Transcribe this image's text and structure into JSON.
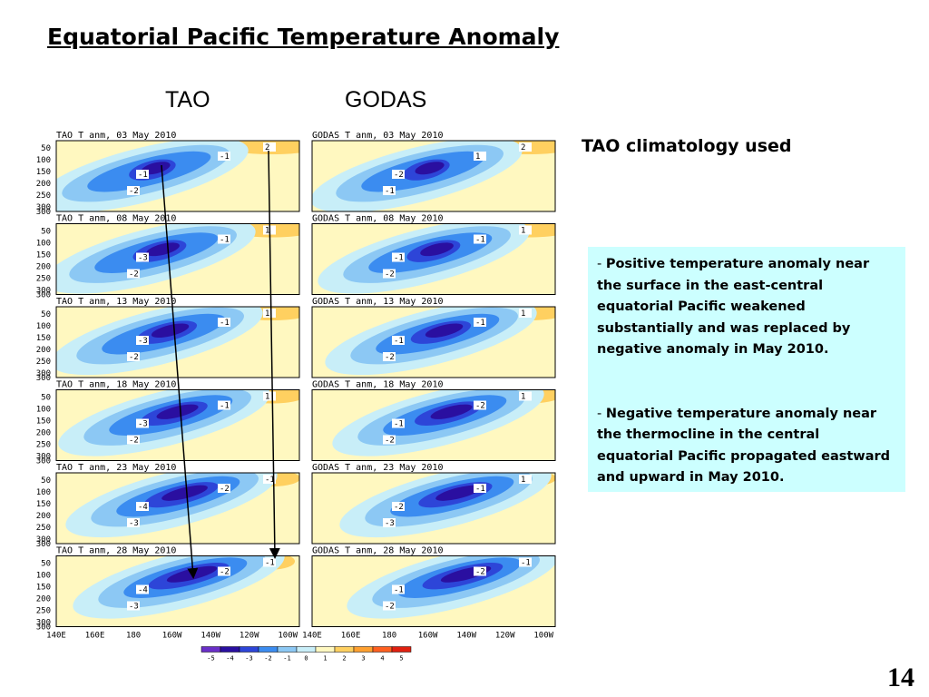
{
  "slide": {
    "title": "Equatorial Pacific Temperature Anomaly",
    "col_tao": "TAO",
    "col_godas": "GODAS",
    "clim_note": "TAO climatology used",
    "page_number": "14"
  },
  "notes": [
    {
      "dash": "- ",
      "text": "Positive temperature anomaly near the surface in the east-central equatorial Pacific  weakened substantially and was replaced by negative anomaly in May 2010."
    },
    {
      "dash": "- ",
      "text": "Negative temperature anomaly near the thermocline in the central equatorial Pacific propagated eastward  and upward in May 2010."
    }
  ],
  "panels": {
    "dates": [
      "03 May 2010",
      "08 May 2010",
      "13 May 2010",
      "18 May 2010",
      "23 May 2010",
      "28 May 2010"
    ],
    "tao_prefix": "TAO T anm, ",
    "godas_prefix": "GODAS T anm, ",
    "depth_ticks": [
      "50",
      "100",
      "150",
      "200",
      "250",
      "300"
    ],
    "lon_ticks": [
      "140E",
      "160E",
      "180",
      "160W",
      "140W",
      "120W",
      "100W"
    ],
    "contour_labels": {
      "tao": [
        [
          "-1",
          "-2",
          "-1",
          "2"
        ],
        [
          "-3",
          "-2",
          "-1",
          "1"
        ],
        [
          "-3",
          "-2",
          "-1",
          "1"
        ],
        [
          "-3",
          "-2",
          "-1",
          "1"
        ],
        [
          "-4",
          "-3",
          "-2",
          "-1"
        ],
        [
          "-4",
          "-3",
          "-2",
          "-1"
        ]
      ],
      "godas": [
        [
          "-2",
          "-1",
          "1",
          "2"
        ],
        [
          "-1",
          "-2",
          "-1",
          "1"
        ],
        [
          "-1",
          "-2",
          "-1",
          "1"
        ],
        [
          "-1",
          "-2",
          "-2",
          "1"
        ],
        [
          "-2",
          "-3",
          "-1",
          "1"
        ],
        [
          "-1",
          "-2",
          "-2",
          "-1"
        ]
      ]
    },
    "colorbar": {
      "labels": [
        "-5",
        "-4",
        "-3",
        "-2",
        "-1",
        "0",
        "1",
        "2",
        "3",
        "4",
        "5"
      ],
      "colors": [
        "#6a2fc8",
        "#2a0fa0",
        "#2d45d8",
        "#3b8cf0",
        "#8cc8f4",
        "#c8eef8",
        "#fff8c0",
        "#ffd060",
        "#ffa030",
        "#ff6020",
        "#e02010"
      ]
    }
  }
}
